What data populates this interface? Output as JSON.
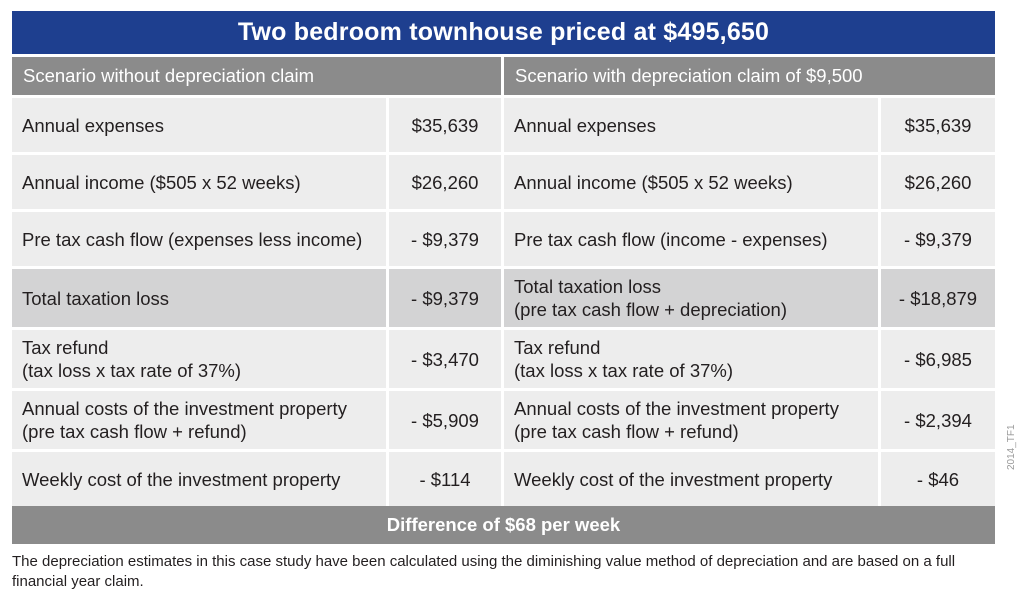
{
  "title": "Two bedroom townhouse priced at $495,650",
  "left_header": "Scenario without depreciation claim",
  "right_header": "Scenario with depreciation claim of $9,500",
  "rows": [
    {
      "left_label": "Annual expenses",
      "left_label2": "",
      "left_value": "$35,639",
      "right_label": "Annual expenses",
      "right_label2": "",
      "right_value": "$35,639"
    },
    {
      "left_label": "Annual income ($505 x 52 weeks)",
      "left_label2": "",
      "left_value": "$26,260",
      "right_label": "Annual income ($505 x 52 weeks)",
      "right_label2": "",
      "right_value": "$26,260"
    },
    {
      "left_label": "Pre tax cash flow (expenses less income)",
      "left_label2": "",
      "left_value": "- $9,379",
      "right_label": "Pre tax cash flow (income - expenses)",
      "right_label2": "",
      "right_value": "- $9,379"
    },
    {
      "left_label": "Total taxation loss",
      "left_label2": "",
      "left_value": "- $9,379",
      "right_label": "Total taxation loss",
      "right_label2": "(pre tax cash flow + depreciation)",
      "right_value": "- $18,879"
    },
    {
      "left_label": "Tax refund",
      "left_label2": "(tax loss x tax rate of 37%)",
      "left_value": "- $3,470",
      "right_label": "Tax refund",
      "right_label2": "(tax loss x tax rate of 37%)",
      "right_value": "- $6,985"
    },
    {
      "left_label": "Annual costs of the investment property",
      "left_label2": "(pre tax cash flow + refund)",
      "left_value": "- $5,909",
      "right_label": "Annual costs of the investment property",
      "right_label2": "(pre tax cash flow + refund)",
      "right_value": "- $2,394"
    },
    {
      "left_label": "Weekly cost of the investment property",
      "left_label2": "",
      "left_value": "- $114",
      "right_label": "Weekly cost of the investment property",
      "right_label2": "",
      "right_value": "- $46"
    }
  ],
  "difference": "Difference of $68 per week",
  "side_code": "2014_TF1",
  "footnote": "The depreciation estimates in this case study have been calculated using the diminishing value method of depreciation and are based on a full financial year claim.",
  "colors": {
    "title_bg": "#1e3f8f",
    "header_bg": "#8b8b8b",
    "cell_bg": "#ededed",
    "shaded_bg": "#d3d3d4"
  }
}
